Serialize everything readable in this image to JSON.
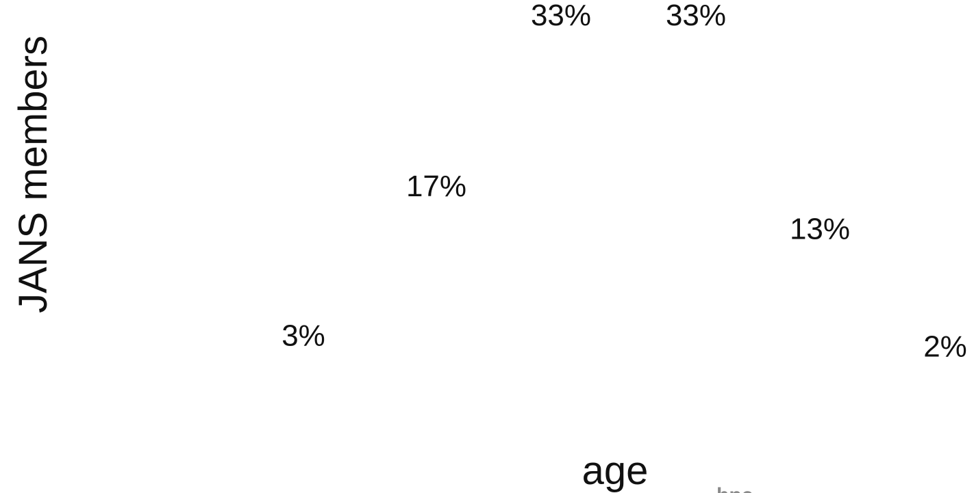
{
  "chart_data": {
    "type": "line",
    "xlabel": "age",
    "ylabel": "JANS members",
    "value_labels": [
      "3%",
      "17%",
      "33%",
      "33%",
      "13%",
      "2%"
    ],
    "values": [
      3,
      17,
      33,
      33,
      13,
      2
    ],
    "ylim": [
      0,
      35
    ],
    "grid": false,
    "legend": "none"
  }
}
